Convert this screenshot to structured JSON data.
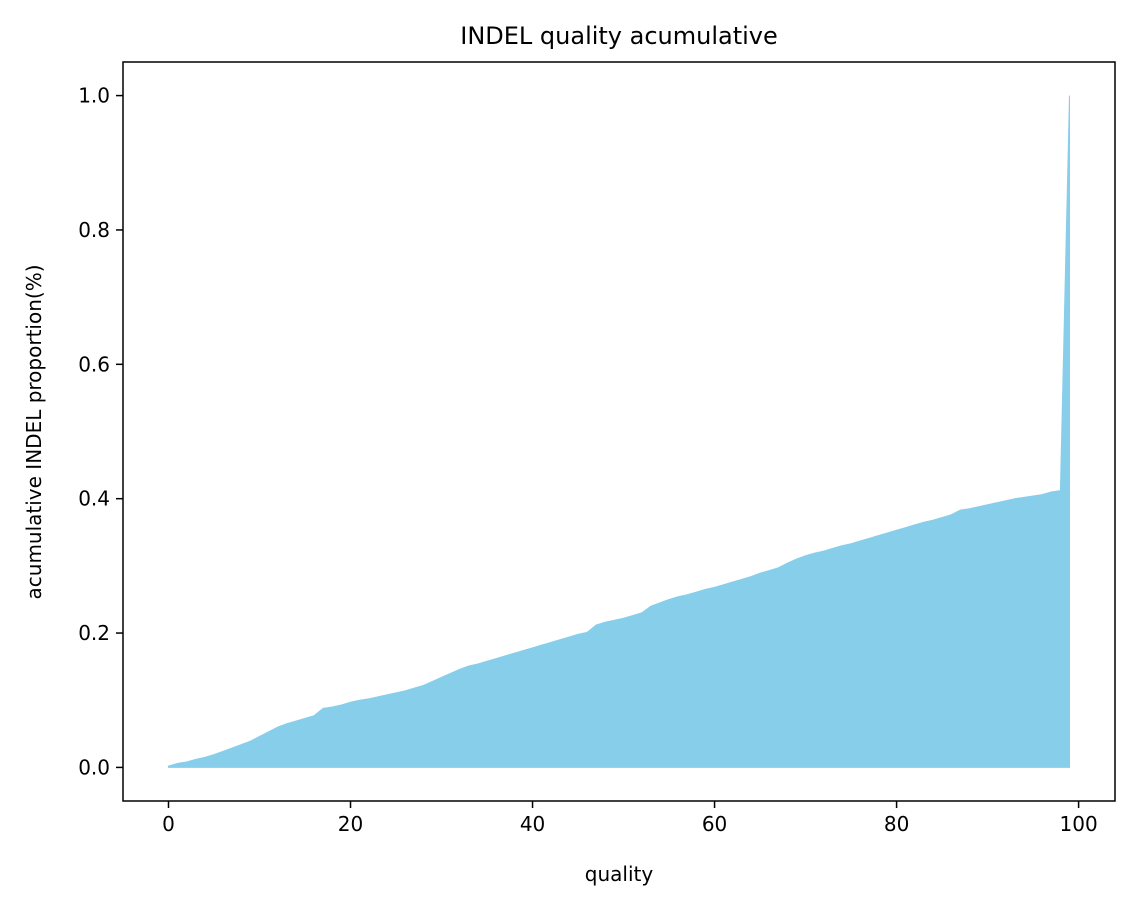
{
  "chart_data": {
    "type": "area",
    "title": "INDEL quality acumulative",
    "xlabel": "quality",
    "ylabel": "acumulative INDEL proportion(%)",
    "xlim": [
      -5,
      104
    ],
    "ylim": [
      -0.05,
      1.05
    ],
    "xticks": [
      0,
      20,
      40,
      60,
      80,
      100
    ],
    "xtick_labels": [
      "0",
      "20",
      "40",
      "60",
      "80",
      "100"
    ],
    "yticks": [
      0.0,
      0.2,
      0.4,
      0.6,
      0.8,
      1.0
    ],
    "ytick_labels": [
      "0.0",
      "0.2",
      "0.4",
      "0.6",
      "0.8",
      "1.0"
    ],
    "grid": false,
    "fill_color": "#87ceeb",
    "series": [
      {
        "x": [
          0,
          1,
          2,
          3,
          4,
          5,
          6,
          7,
          8,
          9,
          10,
          11,
          12,
          13,
          14,
          15,
          16,
          17,
          18,
          19,
          20,
          21,
          22,
          23,
          24,
          25,
          26,
          27,
          28,
          29,
          30,
          31,
          32,
          33,
          34,
          35,
          36,
          37,
          38,
          39,
          40,
          41,
          42,
          43,
          44,
          45,
          46,
          47,
          48,
          49,
          50,
          51,
          52,
          53,
          54,
          55,
          56,
          57,
          58,
          59,
          60,
          61,
          62,
          63,
          64,
          65,
          66,
          67,
          68,
          69,
          70,
          71,
          72,
          73,
          74,
          75,
          76,
          77,
          78,
          79,
          80,
          81,
          82,
          83,
          84,
          85,
          86,
          87,
          88,
          89,
          90,
          91,
          92,
          93,
          94,
          95,
          96,
          97,
          98,
          99
        ],
        "values": [
          0.002,
          0.006,
          0.008,
          0.012,
          0.015,
          0.019,
          0.024,
          0.029,
          0.034,
          0.039,
          0.046,
          0.053,
          0.06,
          0.065,
          0.069,
          0.073,
          0.077,
          0.088,
          0.09,
          0.093,
          0.097,
          0.1,
          0.102,
          0.105,
          0.108,
          0.111,
          0.114,
          0.118,
          0.122,
          0.128,
          0.134,
          0.14,
          0.146,
          0.151,
          0.154,
          0.158,
          0.162,
          0.166,
          0.17,
          0.174,
          0.178,
          0.182,
          0.186,
          0.19,
          0.194,
          0.198,
          0.201,
          0.212,
          0.216,
          0.219,
          0.222,
          0.226,
          0.23,
          0.24,
          0.245,
          0.25,
          0.254,
          0.257,
          0.261,
          0.265,
          0.268,
          0.272,
          0.276,
          0.28,
          0.284,
          0.289,
          0.293,
          0.297,
          0.304,
          0.31,
          0.315,
          0.319,
          0.322,
          0.326,
          0.33,
          0.333,
          0.337,
          0.341,
          0.345,
          0.349,
          0.353,
          0.357,
          0.361,
          0.365,
          0.368,
          0.372,
          0.376,
          0.383,
          0.385,
          0.388,
          0.391,
          0.394,
          0.397,
          0.4,
          0.402,
          0.404,
          0.406,
          0.41,
          0.412,
          1.0
        ]
      }
    ]
  }
}
